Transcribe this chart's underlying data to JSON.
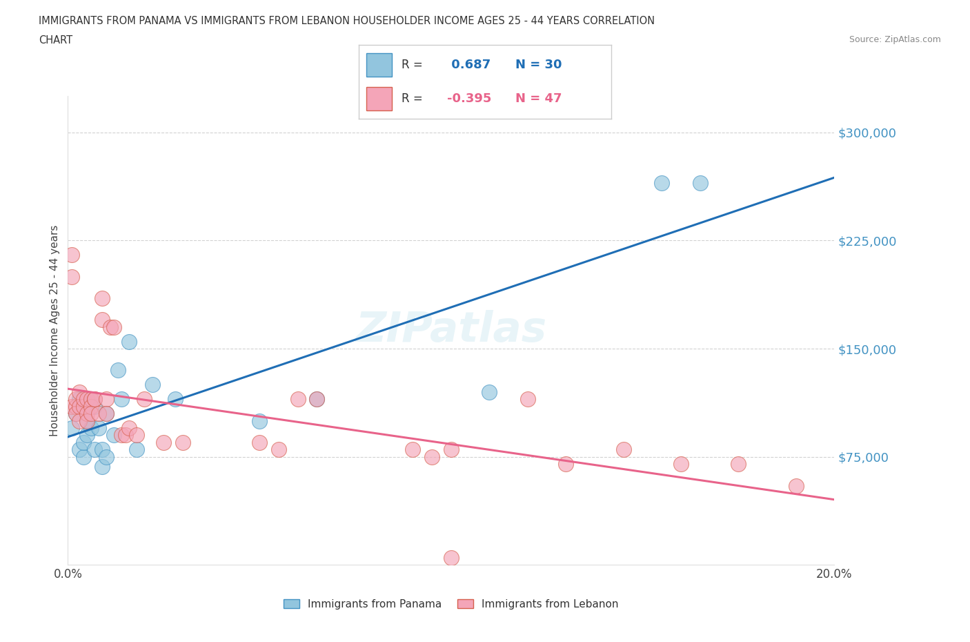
{
  "title_line1": "IMMIGRANTS FROM PANAMA VS IMMIGRANTS FROM LEBANON HOUSEHOLDER INCOME AGES 25 - 44 YEARS CORRELATION",
  "title_line2": "CHART",
  "source_text": "Source: ZipAtlas.com",
  "ylabel": "Householder Income Ages 25 - 44 years",
  "xlim": [
    0.0,
    0.2
  ],
  "ylim": [
    0,
    325000
  ],
  "ytick_labels": [
    "$75,000",
    "$150,000",
    "$225,000",
    "$300,000"
  ],
  "ytick_vals": [
    75000,
    150000,
    225000,
    300000
  ],
  "panama_color": "#92c5de",
  "panama_edge_color": "#4393c3",
  "lebanon_color": "#f4a5b8",
  "lebanon_edge_color": "#d6604d",
  "panama_line_color": "#1f6eb5",
  "lebanon_line_color": "#e8638a",
  "ytick_color": "#4393c3",
  "panama_R": 0.687,
  "panama_N": 30,
  "lebanon_R": -0.395,
  "lebanon_N": 47,
  "panama_x": [
    0.001,
    0.002,
    0.003,
    0.004,
    0.004,
    0.005,
    0.005,
    0.005,
    0.006,
    0.006,
    0.007,
    0.007,
    0.008,
    0.009,
    0.009,
    0.01,
    0.01,
    0.012,
    0.013,
    0.014,
    0.016,
    0.018,
    0.022,
    0.028,
    0.05,
    0.065,
    0.11,
    0.155,
    0.165,
    0.003
  ],
  "panama_y": [
    95000,
    105000,
    80000,
    75000,
    85000,
    110000,
    100000,
    90000,
    115000,
    95000,
    110000,
    80000,
    95000,
    68000,
    80000,
    105000,
    75000,
    90000,
    135000,
    115000,
    155000,
    80000,
    125000,
    115000,
    100000,
    115000,
    120000,
    265000,
    265000,
    115000
  ],
  "lebanon_x": [
    0.001,
    0.001,
    0.001,
    0.002,
    0.002,
    0.002,
    0.003,
    0.003,
    0.003,
    0.004,
    0.004,
    0.005,
    0.005,
    0.005,
    0.006,
    0.006,
    0.006,
    0.007,
    0.007,
    0.008,
    0.009,
    0.009,
    0.01,
    0.01,
    0.011,
    0.012,
    0.014,
    0.015,
    0.016,
    0.018,
    0.02,
    0.025,
    0.03,
    0.05,
    0.055,
    0.06,
    0.065,
    0.09,
    0.095,
    0.1,
    0.12,
    0.13,
    0.145,
    0.16,
    0.175,
    0.19,
    0.1
  ],
  "lebanon_y": [
    215000,
    200000,
    110000,
    110000,
    115000,
    105000,
    120000,
    110000,
    100000,
    110000,
    115000,
    105000,
    115000,
    100000,
    115000,
    110000,
    105000,
    115000,
    115000,
    105000,
    185000,
    170000,
    115000,
    105000,
    165000,
    165000,
    90000,
    90000,
    95000,
    90000,
    115000,
    85000,
    85000,
    85000,
    80000,
    115000,
    115000,
    80000,
    75000,
    80000,
    115000,
    70000,
    80000,
    70000,
    70000,
    55000,
    5000
  ]
}
